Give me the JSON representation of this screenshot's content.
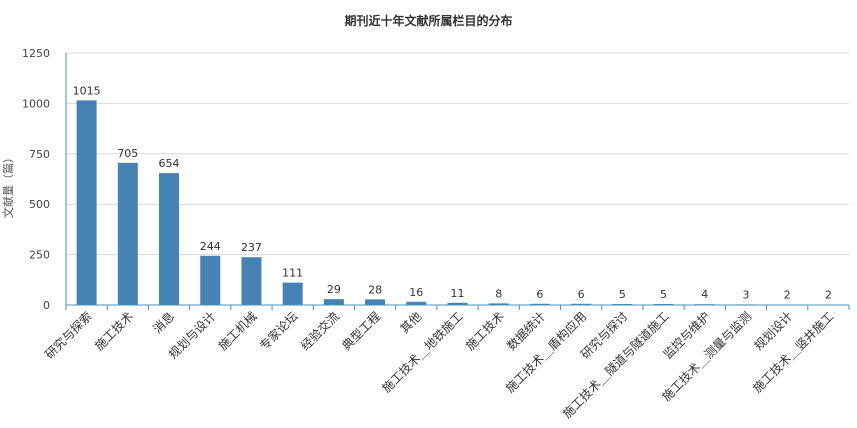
{
  "chart_data": {
    "type": "bar",
    "title": "期刊近十年文献所属栏目的分布",
    "xlabel": "",
    "ylabel": "文献量（篇）",
    "ylim": [
      0,
      1250
    ],
    "yticks": [
      0,
      250,
      500,
      750,
      1000,
      1250
    ],
    "grid": true,
    "legend": "none",
    "bar_color": "#4682b4",
    "categories": [
      "研究与探索",
      "施工技术",
      "消息",
      "规划与设计",
      "施工机械",
      "专家论坛",
      "经验交流",
      "典型工程",
      "其他",
      "施工技术＿地铁施工",
      "施工技术",
      "数据统计",
      "施工技术＿盾构应用",
      "研究与探讨",
      "施工技术＿隧道与隧道施工",
      "监控与维护",
      "施工技术＿测量与监测",
      "规划设计",
      "施工技术＿竖井施工"
    ],
    "values": [
      1015,
      705,
      654,
      244,
      237,
      111,
      29,
      28,
      16,
      11,
      8,
      6,
      6,
      5,
      5,
      4,
      3,
      2,
      2
    ]
  }
}
